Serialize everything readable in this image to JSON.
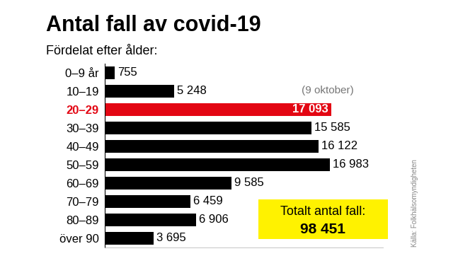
{
  "chart_data": {
    "type": "bar",
    "orientation": "horizontal",
    "title": "Antal fall av covid-19",
    "subtitle": "Fördelat efter ålder:",
    "note": "(9 oktober)",
    "source": "Källa: Folkhälsomyndigheten",
    "total": {
      "text": "Totalt antal fall:",
      "value": 98451,
      "value_label": "98 451"
    },
    "categories": [
      "0–9 år",
      "10–19",
      "20–29",
      "30–39",
      "40–49",
      "50–59",
      "60–69",
      "70–79",
      "80–89",
      "över 90"
    ],
    "values": [
      755,
      5248,
      17093,
      15585,
      16122,
      16983,
      9585,
      6459,
      6906,
      3695
    ],
    "value_labels": [
      "755",
      "5 248",
      "17 093",
      "15 585",
      "16 122",
      "16 983",
      "9 585",
      "6 459",
      "6 906",
      "3 695"
    ],
    "colors": [
      "#000000",
      "#000000",
      "#e30613",
      "#000000",
      "#000000",
      "#000000",
      "#000000",
      "#000000",
      "#000000",
      "#000000"
    ],
    "xlim": [
      0,
      21000
    ],
    "xticks": [],
    "data_labels": true,
    "tick_labels": "y",
    "grid": false
  }
}
